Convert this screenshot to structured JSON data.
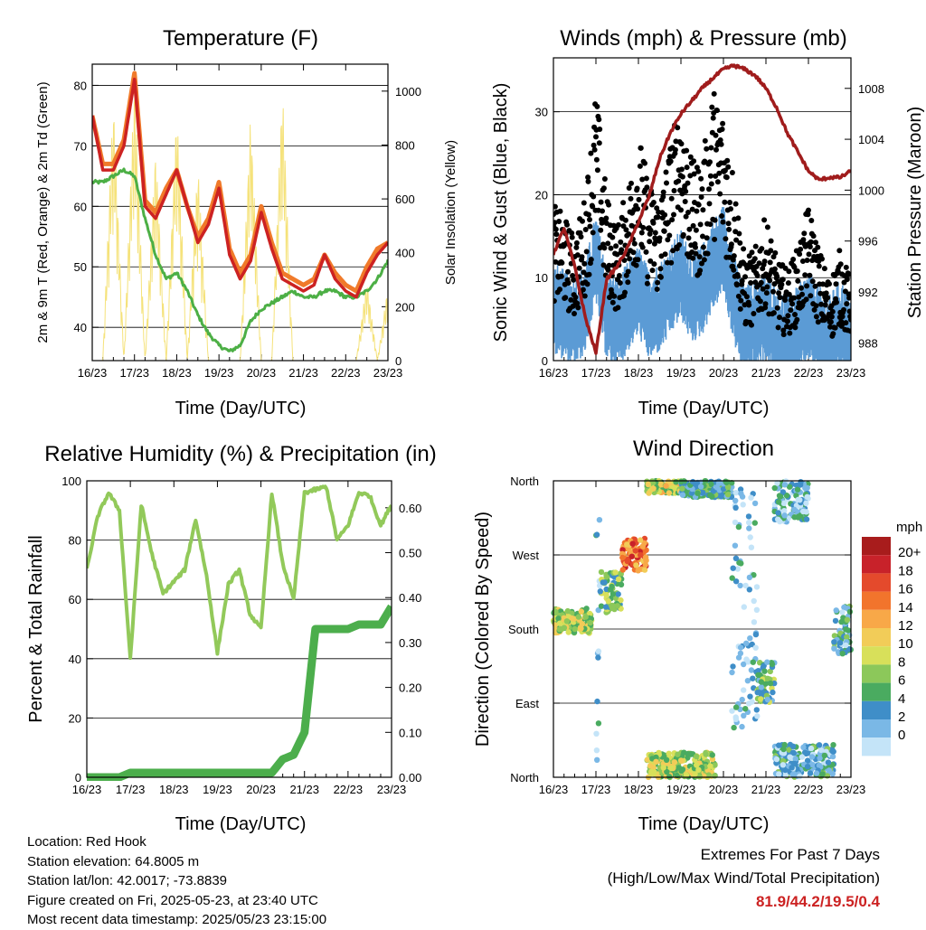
{
  "chart_data": [
    {
      "type": "line",
      "title": "Temperature (F)",
      "xlabel": "Time (Day/UTC)",
      "ylabel_left": "2m & 9m T (Red, Orange) & 2m Td (Green)",
      "ylabel_right": "Solar Insolation (Yellow)",
      "x_ticks": [
        "16/23",
        "17/23",
        "18/23",
        "19/23",
        "20/23",
        "21/23",
        "22/23",
        "23/23"
      ],
      "ylim_left": [
        34.5,
        83.5
      ],
      "yticks_left": [
        40,
        50,
        60,
        70,
        80
      ],
      "ylim_right": [
        0,
        1100
      ],
      "yticks_right": [
        0,
        200,
        400,
        600,
        800,
        1000
      ],
      "x": [
        0,
        0.25,
        0.5,
        0.75,
        1.0,
        1.25,
        1.5,
        1.75,
        2.0,
        2.25,
        2.5,
        2.75,
        3.0,
        3.25,
        3.5,
        3.75,
        4.0,
        4.25,
        4.5,
        4.75,
        5.0,
        5.25,
        5.5,
        5.75,
        6.0,
        6.25,
        6.5,
        6.75,
        7.0
      ],
      "series": [
        {
          "key": "temp_2m",
          "color": "#cc2222",
          "values": [
            75,
            66,
            66,
            70,
            81,
            60,
            58,
            62,
            66,
            60,
            54,
            57,
            63,
            52,
            48,
            51,
            59,
            53,
            48,
            47,
            46,
            47,
            52,
            48,
            46,
            45,
            49,
            52,
            54
          ]
        },
        {
          "key": "temp_9m",
          "color": "#f07a2a",
          "values": [
            75,
            67,
            67,
            71,
            82,
            61,
            59,
            63,
            66,
            60,
            55,
            58,
            64,
            53,
            49,
            52,
            60,
            54,
            49,
            48,
            47,
            48,
            52,
            49,
            47,
            46,
            50,
            53,
            54
          ]
        },
        {
          "key": "dewpoint_2m",
          "color": "#4caf45",
          "values": [
            64,
            64,
            65,
            66,
            65,
            58,
            52,
            48,
            49,
            46,
            42,
            39,
            37,
            36,
            37,
            41,
            43,
            44,
            45,
            46,
            45,
            45,
            46,
            46,
            45,
            45,
            46,
            48,
            51
          ]
        },
        {
          "key": "solar",
          "color": "#f5e27a",
          "axis": "right",
          "values": [
            0,
            0,
            980,
            0,
            1050,
            0,
            790,
            0,
            950,
            0,
            740,
            0,
            0,
            0,
            0,
            920,
            0,
            0,
            1030,
            0,
            0,
            0,
            0,
            0,
            0,
            0,
            300,
            0,
            280
          ]
        }
      ]
    },
    {
      "type": "scatter",
      "title": "Winds (mph) & Pressure (mb)",
      "xlabel": "Time (Day/UTC)",
      "ylabel_left": "Sonic Wind & Gust (Blue, Black)",
      "ylabel_right": "Station Pressure (Maroon)",
      "x_ticks": [
        "16/23",
        "17/23",
        "18/23",
        "19/23",
        "20/23",
        "21/23",
        "22/23",
        "23/23"
      ],
      "ylim_left": [
        0,
        36.5
      ],
      "yticks_left": [
        0,
        10,
        20,
        30
      ],
      "ylim_right": [
        986.6,
        1010.4
      ],
      "yticks_right": [
        988,
        992,
        996,
        1000,
        1004,
        1008
      ],
      "x": [
        0,
        0.25,
        0.5,
        0.75,
        1.0,
        1.25,
        1.5,
        1.75,
        2.0,
        2.25,
        2.5,
        2.75,
        3.0,
        3.25,
        3.5,
        3.75,
        4.0,
        4.25,
        4.5,
        4.75,
        5.0,
        5.25,
        5.5,
        5.75,
        6.0,
        6.25,
        6.5,
        6.75,
        7.0
      ],
      "series": [
        {
          "key": "wind_blue",
          "color": "#5b9bd5",
          "values": [
            7,
            6,
            5,
            7,
            13,
            6,
            5,
            7,
            9,
            6,
            7,
            9,
            11,
            8,
            9,
            12,
            14,
            8,
            4,
            5,
            6,
            4,
            3,
            4,
            6,
            4,
            3,
            5,
            3
          ]
        },
        {
          "key": "gust_black",
          "color": "#000000",
          "values": [
            13,
            12,
            10,
            14,
            24,
            14,
            11,
            15,
            20,
            15,
            14,
            19,
            23,
            17,
            17,
            24,
            22,
            16,
            8,
            9,
            12,
            8,
            7,
            9,
            13,
            9,
            6,
            9,
            6
          ]
        },
        {
          "key": "pressure",
          "color": "#a01c1c",
          "axis": "right",
          "values": [
            995,
            997,
            994,
            990,
            987.2,
            993,
            994,
            995.5,
            997.5,
            999.5,
            1002.5,
            1004.5,
            1006,
            1007,
            1008,
            1008.8,
            1009.5,
            1009.8,
            1009.5,
            1009,
            1008,
            1006.5,
            1004.5,
            1003,
            1001.5,
            1000.8,
            1001,
            1001,
            1001.5
          ]
        }
      ]
    },
    {
      "type": "line",
      "title": "Relative Humidity (%) & Precipitation (in)",
      "xlabel": "Time (Day/UTC)",
      "ylabel_left": "Percent & Total Rainfall",
      "x_ticks": [
        "16/23",
        "17/23",
        "18/23",
        "19/23",
        "20/23",
        "21/23",
        "22/23",
        "23/23"
      ],
      "ylim_left": [
        0,
        100
      ],
      "yticks_left": [
        0,
        20,
        40,
        60,
        80,
        100
      ],
      "ylim_right": [
        0,
        0.66
      ],
      "yticks_right": [
        "0.00",
        "0.10",
        "0.20",
        "0.30",
        "0.40",
        "0.50",
        "0.60"
      ],
      "x": [
        0,
        0.25,
        0.5,
        0.75,
        1.0,
        1.25,
        1.5,
        1.75,
        2.0,
        2.25,
        2.5,
        2.75,
        3.0,
        3.25,
        3.5,
        3.75,
        4.0,
        4.25,
        4.5,
        4.75,
        5.0,
        5.25,
        5.5,
        5.75,
        6.0,
        6.25,
        6.5,
        6.75,
        7.0
      ],
      "series": [
        {
          "key": "rh",
          "color": "#92c95a",
          "values": [
            70,
            88,
            96,
            90,
            40,
            92,
            75,
            62,
            66,
            70,
            87,
            68,
            42,
            65,
            70,
            55,
            50,
            96,
            72,
            60,
            96,
            97,
            98,
            80,
            85,
            96,
            95,
            85,
            92
          ]
        },
        {
          "key": "precip",
          "color": "#4cae4c",
          "axis": "right",
          "values": [
            0,
            0,
            0,
            0,
            0.01,
            0.01,
            0.01,
            0.01,
            0.01,
            0.01,
            0.01,
            0.01,
            0.01,
            0.01,
            0.01,
            0.01,
            0.01,
            0.01,
            0.04,
            0.05,
            0.1,
            0.33,
            0.33,
            0.33,
            0.33,
            0.34,
            0.34,
            0.34,
            0.38
          ]
        }
      ]
    },
    {
      "type": "scatter",
      "title": "Wind Direction",
      "xlabel": "Time (Day/UTC)",
      "ylabel_left": "Direction (Colored By Speed)",
      "x_ticks": [
        "16/23",
        "17/23",
        "18/23",
        "19/23",
        "20/23",
        "21/23",
        "22/23",
        "23/23"
      ],
      "y_ticks": [
        "North",
        "East",
        "South",
        "West",
        "North"
      ],
      "ylim_left": [
        0,
        360
      ],
      "clusters": [
        {
          "x0": 0.0,
          "x1": 0.9,
          "d0": 175,
          "d1": 205,
          "speed": 9
        },
        {
          "x0": 1.0,
          "x1": 1.1,
          "d0": 10,
          "d1": 330,
          "speed": 2
        },
        {
          "x0": 1.1,
          "x1": 1.6,
          "d0": 200,
          "d1": 250,
          "speed": 7
        },
        {
          "x0": 1.6,
          "x1": 2.2,
          "d0": 250,
          "d1": 290,
          "speed": 16
        },
        {
          "x0": 2.2,
          "x1": 3.0,
          "d0": 345,
          "d1": 360,
          "speed": 10
        },
        {
          "x0": 2.2,
          "x1": 3.8,
          "d0": 0,
          "d1": 30,
          "speed": 9
        },
        {
          "x0": 3.0,
          "x1": 4.2,
          "d0": 340,
          "d1": 360,
          "speed": 5
        },
        {
          "x0": 4.2,
          "x1": 4.8,
          "d0": 60,
          "d1": 350,
          "speed": 2
        },
        {
          "x0": 4.8,
          "x1": 5.2,
          "d0": 90,
          "d1": 140,
          "speed": 6
        },
        {
          "x0": 5.2,
          "x1": 6.0,
          "d0": 310,
          "d1": 360,
          "speed": 3
        },
        {
          "x0": 5.2,
          "x1": 6.6,
          "d0": 0,
          "d1": 40,
          "speed": 4
        },
        {
          "x0": 6.6,
          "x1": 7.0,
          "d0": 150,
          "d1": 210,
          "speed": 4
        }
      ]
    }
  ],
  "legend": {
    "title": "mph",
    "labels": [
      "20+",
      "18",
      "16",
      "14",
      "12",
      "10",
      "8",
      "6",
      "4",
      "2",
      "0"
    ],
    "colors": [
      "#a81c1c",
      "#c8222a",
      "#e44a2c",
      "#f2742c",
      "#f8a848",
      "#f2cc58",
      "#d8e05a",
      "#8cc85a",
      "#4aab60",
      "#3f8ec8",
      "#7ab8e6",
      "#c4e4f8"
    ]
  },
  "footer": {
    "location": "Location: Red Hook",
    "elevation": "Station elevation: 64.8005 m",
    "latlon": "Station lat/lon: 42.0017; -73.8839",
    "created": "Figure created on Fri, 2025-05-23, at 23:40 UTC",
    "timestamp": "Most recent data timestamp: 2025/05/23 23:15:00"
  },
  "extremes": {
    "heading": "Extremes For Past 7 Days",
    "subheading": "(High/Low/Max Wind/Total Precipitation)",
    "values": "81.9/44.2/19.5/0.4"
  }
}
